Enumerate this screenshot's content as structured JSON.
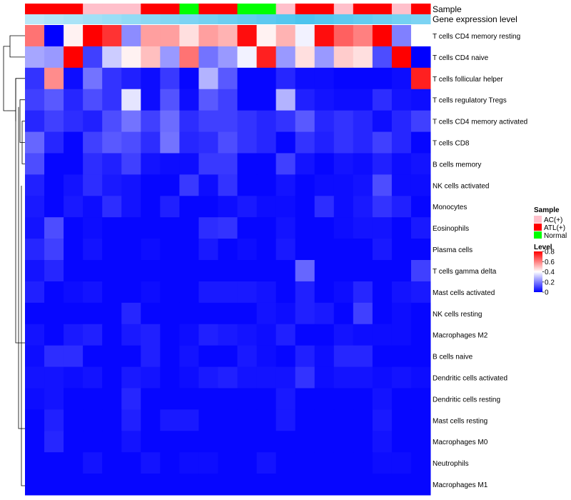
{
  "chart_data": {
    "type": "heatmap",
    "title": "",
    "annotations": {
      "sample_label": "Sample",
      "gene_label": "Gene expression level"
    },
    "sample_groups": [
      "ATL(+)",
      "ATL(+)",
      "ATL(+)",
      "AC(+)",
      "AC(+)",
      "AC(+)",
      "ATL(+)",
      "ATL(+)",
      "Normal",
      "ATL(+)",
      "ATL(+)",
      "Normal",
      "Normal",
      "AC(+)",
      "ATL(+)",
      "ATL(+)",
      "AC(+)",
      "ATL(+)",
      "ATL(+)",
      "AC(+)",
      "ATL(+)"
    ],
    "gene_levels": [
      0.3,
      0.35,
      0.4,
      0.45,
      0.5,
      0.55,
      0.6,
      0.65,
      0.7,
      0.75,
      0.8,
      0.85,
      0.9,
      0.95,
      1.0,
      0.95,
      0.9,
      0.85,
      0.8,
      0.75,
      0.7
    ],
    "rows": [
      "T cells CD4 memory resting",
      "T cells CD4 naive",
      "T cells follicular helper",
      "T cells regulatory  Tregs",
      "T cells CD4 memory activated",
      "T cells CD8",
      "B cells memory",
      "NK cells activated",
      "Monocytes",
      "Eosinophils",
      "Plasma cells",
      "T cells gamma delta",
      "Mast cells activated",
      "NK cells resting",
      "Macrophages M2",
      "B cells naive",
      "Dendritic cells activated",
      "Dendritic cells resting",
      "Mast cells resting",
      "Macrophages M0",
      "Neutrophils",
      "Macrophages M1"
    ],
    "values": [
      [
        0.62,
        0.0,
        0.42,
        0.8,
        0.72,
        0.22,
        0.55,
        0.55,
        0.45,
        0.55,
        0.52,
        0.78,
        0.42,
        0.52,
        0.38,
        0.78,
        0.65,
        0.6,
        0.8,
        0.2,
        0.4
      ],
      [
        0.26,
        0.24,
        0.8,
        0.1,
        0.32,
        0.42,
        0.5,
        0.24,
        0.62,
        0.18,
        0.24,
        0.38,
        0.75,
        0.24,
        0.45,
        0.24,
        0.48,
        0.45,
        0.12,
        0.8,
        0.0
      ],
      [
        0.08,
        0.58,
        0.02,
        0.18,
        0.08,
        0.05,
        0.02,
        0.09,
        0.01,
        0.28,
        0.14,
        0.01,
        0.01,
        0.06,
        0.02,
        0.02,
        0.01,
        0.01,
        0.01,
        0.02,
        0.75
      ],
      [
        0.1,
        0.14,
        0.06,
        0.12,
        0.08,
        0.36,
        0.02,
        0.13,
        0.02,
        0.14,
        0.1,
        0.01,
        0.01,
        0.28,
        0.05,
        0.03,
        0.02,
        0.02,
        0.07,
        0.03,
        0.02
      ],
      [
        0.06,
        0.1,
        0.07,
        0.05,
        0.12,
        0.18,
        0.1,
        0.17,
        0.07,
        0.1,
        0.1,
        0.08,
        0.06,
        0.08,
        0.14,
        0.06,
        0.08,
        0.06,
        0.02,
        0.06,
        0.1
      ],
      [
        0.16,
        0.06,
        0.01,
        0.1,
        0.14,
        0.12,
        0.07,
        0.18,
        0.06,
        0.07,
        0.12,
        0.08,
        0.06,
        0.01,
        0.08,
        0.05,
        0.08,
        0.06,
        0.1,
        0.06,
        0.01
      ],
      [
        0.12,
        0.01,
        0.01,
        0.07,
        0.05,
        0.1,
        0.03,
        0.02,
        0.02,
        0.09,
        0.09,
        0.01,
        0.01,
        0.1,
        0.03,
        0.01,
        0.03,
        0.02,
        0.05,
        0.02,
        0.03
      ],
      [
        0.05,
        0.01,
        0.03,
        0.07,
        0.04,
        0.03,
        0.01,
        0.01,
        0.09,
        0.02,
        0.08,
        0.01,
        0.01,
        0.03,
        0.01,
        0.02,
        0.02,
        0.03,
        0.12,
        0.02,
        0.02
      ],
      [
        0.04,
        0.01,
        0.04,
        0.02,
        0.07,
        0.03,
        0.01,
        0.05,
        0.01,
        0.01,
        0.02,
        0.04,
        0.02,
        0.02,
        0.01,
        0.07,
        0.02,
        0.04,
        0.08,
        0.05,
        0.01
      ],
      [
        0.03,
        0.12,
        0.01,
        0.02,
        0.01,
        0.01,
        0.01,
        0.01,
        0.01,
        0.07,
        0.08,
        0.01,
        0.01,
        0.03,
        0.01,
        0.01,
        0.02,
        0.03,
        0.03,
        0.01,
        0.04
      ],
      [
        0.06,
        0.1,
        0.01,
        0.03,
        0.01,
        0.01,
        0.02,
        0.01,
        0.01,
        0.04,
        0.01,
        0.02,
        0.01,
        0.04,
        0.01,
        0.01,
        0.01,
        0.01,
        0.04,
        0.01,
        0.01
      ],
      [
        0.03,
        0.06,
        0.01,
        0.01,
        0.01,
        0.01,
        0.01,
        0.01,
        0.01,
        0.01,
        0.01,
        0.01,
        0.01,
        0.01,
        0.16,
        0.01,
        0.01,
        0.01,
        0.01,
        0.01,
        0.1
      ],
      [
        0.05,
        0.01,
        0.02,
        0.03,
        0.01,
        0.01,
        0.02,
        0.01,
        0.01,
        0.04,
        0.04,
        0.04,
        0.03,
        0.01,
        0.05,
        0.01,
        0.02,
        0.06,
        0.01,
        0.03,
        0.04
      ],
      [
        0.01,
        0.01,
        0.01,
        0.01,
        0.01,
        0.06,
        0.01,
        0.01,
        0.01,
        0.01,
        0.01,
        0.01,
        0.03,
        0.02,
        0.05,
        0.04,
        0.01,
        0.1,
        0.01,
        0.02,
        0.01
      ],
      [
        0.03,
        0.01,
        0.04,
        0.05,
        0.01,
        0.04,
        0.05,
        0.01,
        0.02,
        0.05,
        0.04,
        0.03,
        0.02,
        0.05,
        0.01,
        0.01,
        0.03,
        0.02,
        0.02,
        0.02,
        0.01
      ],
      [
        0.02,
        0.07,
        0.07,
        0.01,
        0.01,
        0.01,
        0.05,
        0.01,
        0.03,
        0.01,
        0.01,
        0.04,
        0.02,
        0.01,
        0.05,
        0.02,
        0.06,
        0.06,
        0.01,
        0.01,
        0.01
      ],
      [
        0.03,
        0.03,
        0.02,
        0.03,
        0.01,
        0.04,
        0.03,
        0.01,
        0.02,
        0.04,
        0.05,
        0.03,
        0.03,
        0.03,
        0.08,
        0.02,
        0.03,
        0.03,
        0.02,
        0.03,
        0.02
      ],
      [
        0.02,
        0.03,
        0.01,
        0.01,
        0.01,
        0.06,
        0.01,
        0.01,
        0.01,
        0.01,
        0.01,
        0.01,
        0.01,
        0.04,
        0.01,
        0.01,
        0.01,
        0.01,
        0.03,
        0.01,
        0.01
      ],
      [
        0.01,
        0.05,
        0.01,
        0.01,
        0.01,
        0.05,
        0.01,
        0.04,
        0.04,
        0.01,
        0.01,
        0.01,
        0.01,
        0.04,
        0.01,
        0.01,
        0.01,
        0.01,
        0.04,
        0.01,
        0.01
      ],
      [
        0.01,
        0.06,
        0.01,
        0.01,
        0.01,
        0.03,
        0.01,
        0.01,
        0.01,
        0.01,
        0.01,
        0.01,
        0.01,
        0.01,
        0.01,
        0.01,
        0.01,
        0.01,
        0.03,
        0.01,
        0.01
      ],
      [
        0.01,
        0.01,
        0.01,
        0.03,
        0.01,
        0.01,
        0.03,
        0.01,
        0.02,
        0.02,
        0.01,
        0.01,
        0.03,
        0.01,
        0.01,
        0.01,
        0.01,
        0.01,
        0.02,
        0.02,
        0.01
      ],
      [
        0.01,
        0.01,
        0.01,
        0.01,
        0.01,
        0.01,
        0.01,
        0.01,
        0.01,
        0.01,
        0.01,
        0.01,
        0.01,
        0.01,
        0.01,
        0.01,
        0.01,
        0.01,
        0.01,
        0.01,
        0.01
      ]
    ],
    "legend": {
      "sample_title": "Sample",
      "sample_entries": [
        "AC(+)",
        "ATL(+)",
        "Normal"
      ],
      "level_title": "Level",
      "level_ticks": [
        "0.8",
        "0.6",
        "0.4",
        "0.2",
        "0"
      ],
      "level_tick_values": [
        0.8,
        0.6,
        0.4,
        0.2,
        0
      ],
      "range": [
        0,
        0.8
      ]
    },
    "colors": {
      "low": "#0000ff",
      "mid": "#ffffff",
      "high": "#ff0000",
      "group_AC": "#ffc0cb",
      "group_ATL": "#ff0000",
      "group_Normal": "#00ff00",
      "gene_light": "#e8f7fd",
      "gene_dark": "#4dc4ee"
    }
  }
}
